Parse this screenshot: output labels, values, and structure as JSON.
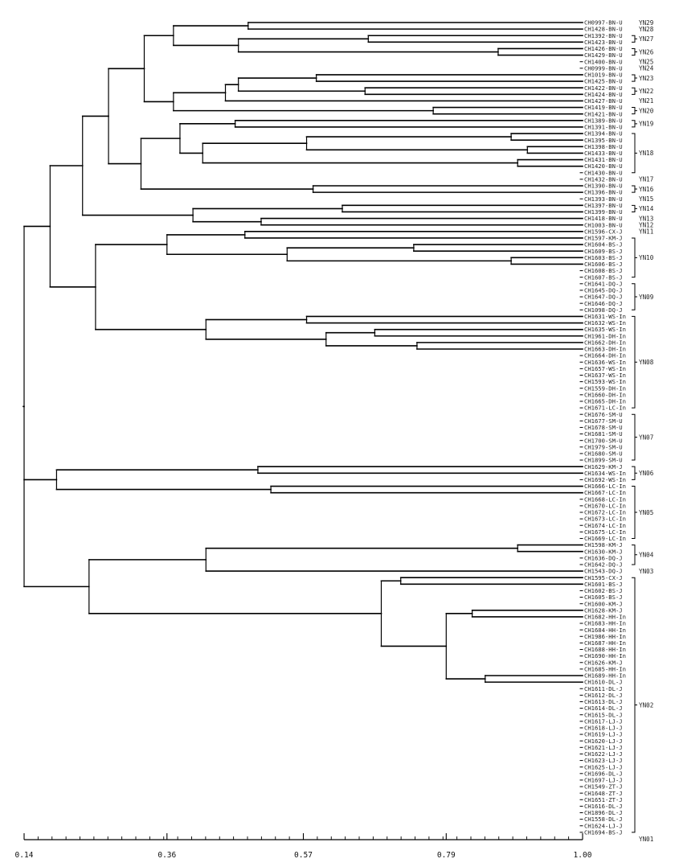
{
  "leaves": [
    "CH0997-BN-U",
    "CH1428-BN-U",
    "CH1392-BN-U",
    "CH1423-BN-U",
    "CH1426-BN-U",
    "CH1429-BN-U",
    "CH1400-BN-U",
    "CH0999-BN-U",
    "CH1019-BN-U",
    "CH1425-BN-U",
    "CH1422-BN-U",
    "CH1424-BN-U",
    "CH1427-BN-U",
    "CH1419-BN-U",
    "CH1421-BN-U",
    "CH1389-BN-U",
    "CH1391-BN-U",
    "CH1394-BN-U",
    "CH1395-BN-U",
    "CH1398-BN-U",
    "CH1433-BN-U",
    "CH1431-BN-U",
    "CH1420-BN-U",
    "CH1430-BN-U",
    "CH1432-BN-U",
    "CH1390-BN-U",
    "CH1396-BN-U",
    "CH1393-BN-U",
    "CH1397-BN-U",
    "CH1399-BN-U",
    "CH1418-BN-U",
    "CH1003-BN-U",
    "CH1596-CX-J",
    "CH1597-KM-J",
    "CH1604-BS-J",
    "CH1609-BS-J",
    "CH1603-BS-J",
    "CH1606-BS-J",
    "CH1608-BS-J",
    "CH1607-BS-J",
    "CH1641-DQ-J",
    "CH1645-DQ-J",
    "CH1647-DQ-J",
    "CH1646-DQ-J",
    "CH1098-DQ-J",
    "CH1631-WS-In",
    "CH1632-WS-In",
    "CH1635-WS-In",
    "CH1961-DH-In",
    "CH1662-DH-In",
    "CH1663-DH-In",
    "CH1664-DH-In",
    "CH1636-WS-In",
    "CH1657-WS-In",
    "CH1637-WS-In",
    "CH1593-WS-In",
    "CH1559-DH-In",
    "CH1660-DH-In",
    "CH1665-DH-In",
    "CH1671-LC-In",
    "CH1676-SM-U",
    "CH1677-SM-U",
    "CH1678-SM-U",
    "CH1681-SM-U",
    "CH1700-SM-U",
    "CH1979-SM-U",
    "CH1680-SM-U",
    "CH1899-SM-U",
    "CH1629-KM-J",
    "CH1634-WS-In",
    "CH1692-WS-In",
    "CH1666-LC-In",
    "CH1667-LC-In",
    "CH1668-LC-In",
    "CH1670-LC-In",
    "CH1672-LC-In",
    "CH1673-LC-In",
    "CH1674-LC-In",
    "CH1675-LC-In",
    "CH1669-LC-In",
    "CH1598-KM-J",
    "CH1630-KM-J",
    "CH1636-DQ-J",
    "CH1642-DQ-J",
    "CH1543-DQ-J",
    "CH1595-CX-J",
    "CH1601-BS-J",
    "CH1602-BS-J",
    "CH1605-BS-J",
    "CH1600-KM-J",
    "CH1628-KM-J",
    "CH1682-HH-In",
    "CH1683-HH-In",
    "CH1684-HH-In",
    "CH1986-HH-In",
    "CH1687-HH-In",
    "CH1688-HH-In",
    "CH1690-HH-In",
    "CH1626-KM-J",
    "CH1685-HH-In",
    "CH1689-HH-In",
    "CH1610-DL-J",
    "CH1611-DL-J",
    "CH1612-DL-J",
    "CH1613-DL-J",
    "CH1614-DL-J",
    "CH1615-DL-J",
    "CH1617-LJ-J",
    "CH1618-LJ-J",
    "CH1619-LJ-J",
    "CH1620-LJ-J",
    "CH1621-LJ-J",
    "CH1622-LJ-J",
    "CH1623-LJ-J",
    "CH1625-LJ-J",
    "CH1696-DL-J",
    "CH1697-LJ-J",
    "CH1549-ZT-J",
    "CH1648-ZT-J",
    "CH1651-ZT-J",
    "CH1616-DL-J",
    "CH1896-DL-J",
    "CH1558-DL-J",
    "CH1624-LJ-J",
    "CH1694-BS-J"
  ],
  "groups": [
    {
      "label": "YN29",
      "start": 0,
      "end": 0
    },
    {
      "label": "YN28",
      "start": 1,
      "end": 1
    },
    {
      "label": "YN27",
      "start": 2,
      "end": 3
    },
    {
      "label": "YN26",
      "start": 4,
      "end": 5
    },
    {
      "label": "YN25",
      "start": 6,
      "end": 6
    },
    {
      "label": "YN24",
      "start": 7,
      "end": 7
    },
    {
      "label": "YN23",
      "start": 8,
      "end": 9
    },
    {
      "label": "YN22",
      "start": 10,
      "end": 11
    },
    {
      "label": "YN21",
      "start": 12,
      "end": 12
    },
    {
      "label": "YN20",
      "start": 13,
      "end": 14
    },
    {
      "label": "YN19",
      "start": 15,
      "end": 16
    },
    {
      "label": "YN18",
      "start": 17,
      "end": 23
    },
    {
      "label": "YN17",
      "start": 24,
      "end": 24
    },
    {
      "label": "YN16",
      "start": 25,
      "end": 26
    },
    {
      "label": "YN15",
      "start": 27,
      "end": 27
    },
    {
      "label": "YN14",
      "start": 28,
      "end": 29
    },
    {
      "label": "YN13",
      "start": 30,
      "end": 30
    },
    {
      "label": "YN12",
      "start": 31,
      "end": 31
    },
    {
      "label": "YN11",
      "start": 32,
      "end": 32
    },
    {
      "label": "YN10",
      "start": 33,
      "end": 39
    },
    {
      "label": "YN09",
      "start": 40,
      "end": 44
    },
    {
      "label": "YN08",
      "start": 45,
      "end": 59
    },
    {
      "label": "YN07",
      "start": 60,
      "end": 67
    },
    {
      "label": "YN06",
      "start": 68,
      "end": 70
    },
    {
      "label": "YN05",
      "start": 71,
      "end": 79
    },
    {
      "label": "YN04",
      "start": 80,
      "end": 83
    },
    {
      "label": "YN03",
      "start": 84,
      "end": 84
    },
    {
      "label": "YN02",
      "start": 85,
      "end": 124
    },
    {
      "label": "YN01",
      "start": 125,
      "end": 125
    }
  ],
  "axis": {
    "min": 0.14,
    "max": 1.0,
    "tick_labels": [
      "0.14",
      "0.36",
      "0.57",
      "0.79",
      "1.00"
    ],
    "tick_values": [
      0.14,
      0.36,
      0.57,
      0.79,
      1.0
    ],
    "minor_tick_count": 40
  },
  "tree": [
    "s",
    0.14,
    [
      "s",
      0.18,
      [
        "s",
        0.23,
        [
          "s",
          0.27,
          [
            "s",
            0.325,
            [
              "s",
              0.37,
              [
                "s",
                0.485,
                [
                  "L",
                  0
                ],
                [
                  "L",
                  1
                ]
              ],
              [
                "s",
                0.47,
                [
                  "s",
                  0.67,
                  [
                    "L",
                    2
                  ],
                  [
                    "L",
                    3
                  ]
                ],
                [
                  "s",
                  0.87,
                  [
                    "L",
                    4
                  ],
                  [
                    "L",
                    5
                  ]
                ]
              ]
            ],
            [
              "s",
              0.37,
              [
                "s",
                0.45,
                [
                  "s",
                  0.47,
                  [
                    "s",
                    0.59,
                    [
                      "L",
                      8
                    ],
                    [
                      "L",
                      9
                    ]
                  ],
                  [
                    "s",
                    0.665,
                    [
                      "L",
                      10
                    ],
                    [
                      "L",
                      11
                    ]
                  ]
                ],
                [
                  "L",
                  12
                ]
              ],
              [
                "s",
                0.77,
                [
                  "L",
                  13
                ],
                [
                  "L",
                  14
                ]
              ]
            ]
          ],
          [
            "s",
            0.32,
            [
              "s",
              0.38,
              [
                "s",
                0.465,
                [
                  "L",
                  15
                ],
                [
                  "L",
                  16
                ]
              ],
              [
                "s",
                0.415,
                [
                  "s",
                  0.575,
                  [
                    "s",
                    0.89,
                    [
                      "L",
                      17
                    ],
                    [
                      "L",
                      18
                    ]
                  ],
                  [
                    "s",
                    0.915,
                    [
                      "L",
                      19
                    ],
                    [
                      "L",
                      20
                    ]
                  ]
                ],
                [
                  "s",
                  0.9,
                  [
                    "L",
                    21
                  ],
                  [
                    "L",
                    22
                  ]
                ]
              ]
            ],
            [
              "s",
              0.585,
              [
                "L",
                25
              ],
              [
                "L",
                26
              ]
            ]
          ]
        ],
        [
          "s",
          0.4,
          [
            "s",
            0.63,
            [
              "L",
              28
            ],
            [
              "L",
              29
            ]
          ],
          [
            "s",
            0.505,
            [
              "L",
              30
            ],
            [
              "L",
              31
            ]
          ]
        ]
      ],
      [
        "s",
        0.25,
        [
          "s",
          0.36,
          [
            "s",
            0.48,
            [
              "L",
              32
            ],
            [
              "L",
              33
            ]
          ],
          [
            "s",
            0.545,
            [
              "s",
              0.74,
              [
                "L",
                34
              ],
              [
                "L",
                35
              ]
            ],
            [
              "s",
              0.89,
              [
                "L",
                36
              ],
              [
                "L",
                37
              ]
            ]
          ]
        ],
        [
          "s",
          0.42,
          [
            "s",
            0.575,
            [
              "L",
              45
            ],
            [
              "L",
              46
            ]
          ],
          [
            "s",
            0.605,
            [
              "s",
              0.68,
              [
                "L",
                47
              ],
              [
                "L",
                48
              ]
            ],
            [
              "s",
              0.745,
              [
                "L",
                49
              ],
              [
                "L",
                50
              ]
            ]
          ]
        ]
      ]
    ],
    [
      "s",
      0.19,
      [
        "s",
        0.5,
        [
          "L",
          68
        ],
        [
          "L",
          69
        ]
      ],
      [
        "s",
        0.52,
        [
          "L",
          71
        ],
        [
          "L",
          72
        ]
      ]
    ],
    [
      "s",
      0.24,
      [
        "s",
        0.42,
        [
          "s",
          0.9,
          [
            "L",
            80
          ],
          [
            "L",
            81
          ]
        ],
        [
          "L",
          84
        ]
      ],
      [
        "s",
        0.69,
        [
          "s",
          0.72,
          [
            "L",
            85
          ],
          [
            "L",
            86
          ]
        ],
        [
          "s",
          0.79,
          [
            "s",
            0.83,
            [
              "L",
              90
            ],
            [
              "L",
              91
            ]
          ],
          [
            "s",
            0.85,
            [
              "L",
              100
            ],
            [
              "L",
              101
            ]
          ]
        ]
      ]
    ]
  ]
}
